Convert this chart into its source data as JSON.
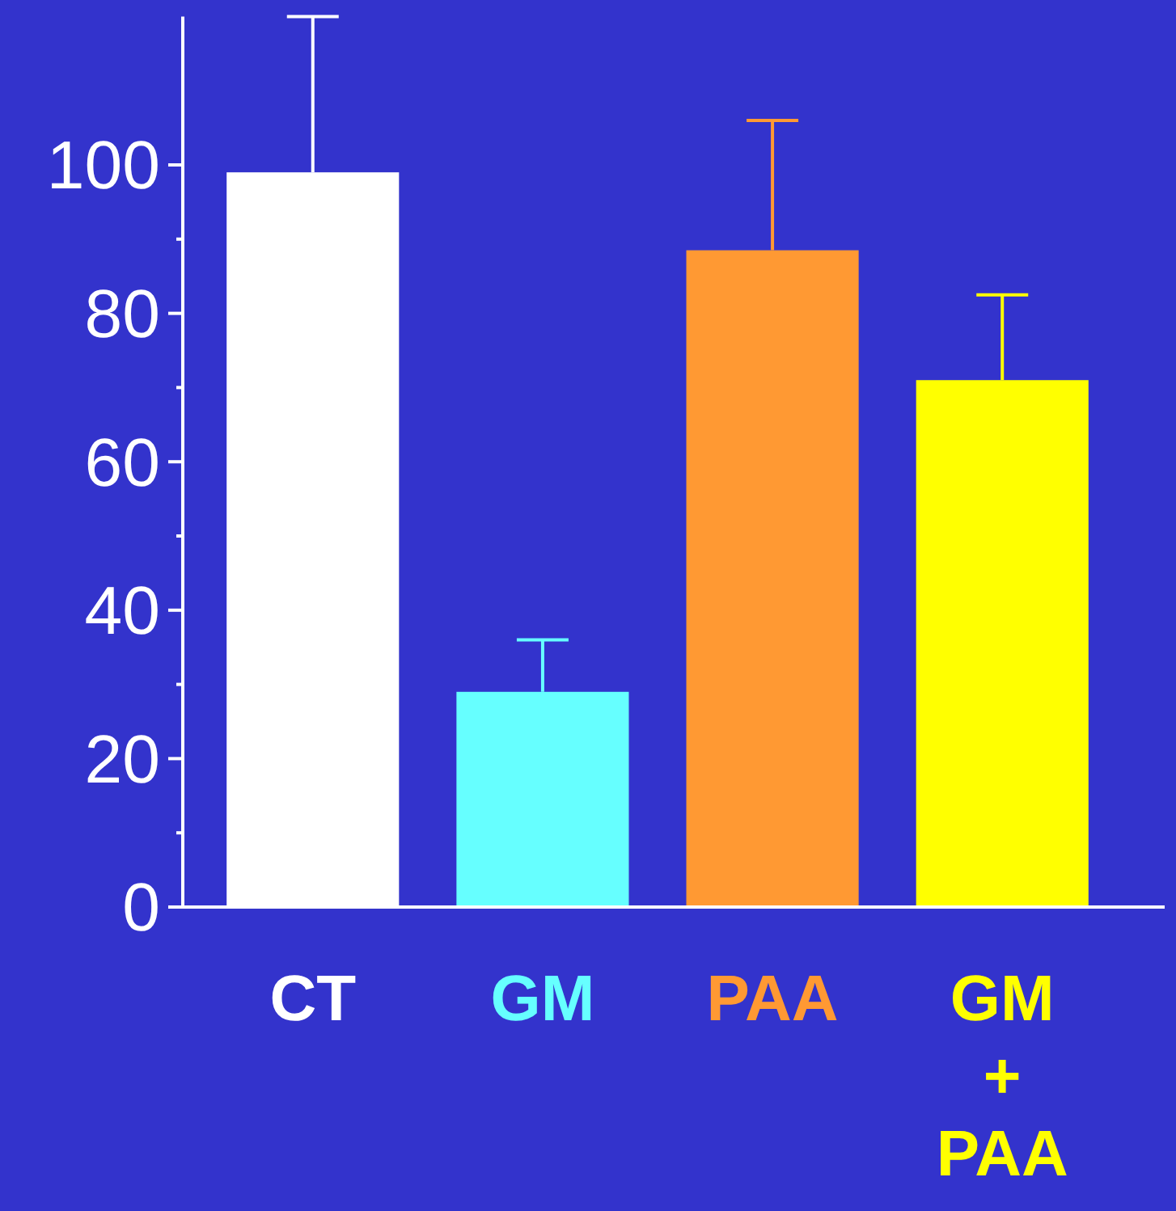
{
  "chart_data": {
    "type": "bar",
    "categories": [
      "CT",
      "GM",
      "PAA",
      "GM + PAA"
    ],
    "values": [
      99,
      29,
      88.5,
      71
    ],
    "colors": [
      "#ffffff",
      "#66ffff",
      "#ff9933",
      "#ffff00"
    ],
    "errors": [
      [
        99,
        120
      ],
      [
        29,
        36
      ],
      [
        88.5,
        106
      ],
      [
        71,
        82.5
      ]
    ],
    "ylim": [
      0,
      120
    ],
    "yticks": [
      0,
      {
        "value": 10,
        "label": null
      },
      20,
      {
        "value": 30,
        "label": null
      },
      40,
      {
        "value": 50,
        "label": null
      },
      60,
      {
        "value": 70,
        "label": null
      },
      80,
      {
        "value": 90,
        "label": null
      },
      100
    ],
    "grid": false
  }
}
